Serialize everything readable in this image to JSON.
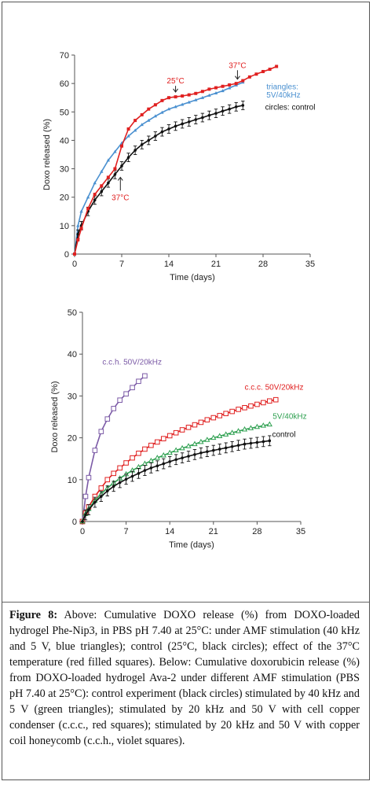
{
  "chart_data": [
    {
      "type": "line",
      "ylabel": "Doxo released (%)",
      "xlabel": "Time (days)",
      "xlim": [
        0,
        35
      ],
      "ylim": [
        0,
        70
      ],
      "xticks": [
        "0",
        "7",
        "14",
        "21",
        "28",
        "35"
      ],
      "yticks": [
        "0",
        "10",
        "20",
        "30",
        "40",
        "50",
        "60",
        "70"
      ],
      "grid": false,
      "series": [
        {
          "key": "blue",
          "color": "#4a90d0",
          "marker": "triangle",
          "x": [
            0,
            0.5,
            1,
            2,
            3,
            4,
            5,
            6,
            7,
            8,
            9,
            10,
            11,
            12,
            13,
            14,
            15,
            16,
            17,
            18,
            19,
            20,
            21,
            22,
            23,
            24,
            25
          ],
          "y": [
            0,
            10,
            15,
            20,
            25,
            29,
            33,
            36,
            39,
            41.5,
            43.5,
            45.5,
            47,
            48.5,
            49.8,
            51,
            51.8,
            52.6,
            53.4,
            54.2,
            55,
            55.8,
            56.6,
            57.4,
            58.4,
            59.4,
            60.4
          ]
        },
        {
          "key": "black",
          "color": "#111111",
          "marker": "circle",
          "errorbar": 1.5,
          "x": [
            0,
            0.5,
            1,
            2,
            3,
            4,
            5,
            6,
            7,
            8,
            9,
            10,
            11,
            12,
            13,
            14,
            15,
            16,
            17,
            18,
            19,
            20,
            21,
            22,
            23,
            24,
            25
          ],
          "y": [
            0,
            7,
            10,
            15,
            19,
            22,
            25,
            28,
            31,
            34,
            36.5,
            38.5,
            40,
            41.5,
            43,
            44,
            45,
            45.8,
            46.5,
            47.3,
            48,
            48.8,
            49.5,
            50.3,
            51,
            51.8,
            52.3
          ]
        },
        {
          "key": "red",
          "color": "#e02020",
          "marker": "square-filled",
          "x": [
            0,
            0.5,
            1,
            2,
            3,
            4,
            5,
            6,
            7,
            8,
            9,
            10,
            11,
            12,
            13,
            14,
            15,
            16,
            17,
            18,
            19,
            20,
            21,
            22,
            23,
            24,
            25,
            26,
            27,
            28,
            29,
            30
          ],
          "y": [
            0,
            5,
            9,
            16,
            21,
            24,
            27,
            30,
            38,
            44,
            47,
            49,
            51,
            52.5,
            54,
            55,
            55.3,
            55.6,
            56,
            56.5,
            57.2,
            58,
            58.5,
            59,
            59.5,
            60,
            61,
            62.3,
            63.3,
            64.2,
            65,
            66
          ]
        }
      ],
      "annotations": [
        {
          "text": "25°C",
          "x": 15,
          "y": 60,
          "arrow_y": 57,
          "color": "#e02020"
        },
        {
          "text": "37°C",
          "x": 24.2,
          "y": 65.5,
          "arrow_y": 61.5,
          "color": "#e02020"
        },
        {
          "text": "37°C",
          "x": 6.8,
          "y": 19,
          "arrow_y": 27,
          "color": "#e02020",
          "below": true
        },
        {
          "text": "triangles:",
          "x": 28.5,
          "y": 58,
          "color": "#4a90d0",
          "align": "start"
        },
        {
          "text": "5V/40kHz",
          "x": 28.5,
          "y": 55,
          "color": "#4a90d0",
          "align": "start"
        },
        {
          "text": "circles: control",
          "x": 28.3,
          "y": 50.8,
          "color": "#111111",
          "align": "start"
        }
      ]
    },
    {
      "type": "line",
      "ylabel": "Doxo released (%)",
      "xlabel": "Time (days)",
      "xlim": [
        0,
        35
      ],
      "ylim": [
        0,
        50
      ],
      "xticks": [
        "0",
        "7",
        "14",
        "21",
        "28",
        "35"
      ],
      "yticks": [
        "0",
        "10",
        "20",
        "30",
        "40",
        "50"
      ],
      "grid": false,
      "series": [
        {
          "key": "violet",
          "color": "#7b5aa6",
          "marker": "square-open",
          "x": [
            0,
            0.5,
            1,
            2,
            3,
            4,
            5,
            6,
            7,
            8,
            9,
            10
          ],
          "y": [
            0,
            6,
            10.5,
            17,
            21.5,
            24.5,
            27,
            29,
            30.5,
            32,
            33.5,
            34.8
          ]
        },
        {
          "key": "red",
          "color": "#e02020",
          "marker": "square-open",
          "x": [
            0,
            0.5,
            1,
            2,
            3,
            4,
            5,
            6,
            7,
            8,
            9,
            10,
            11,
            12,
            13,
            14,
            15,
            16,
            17,
            18,
            19,
            20,
            21,
            22,
            23,
            24,
            25,
            26,
            27,
            28,
            29,
            30,
            31
          ],
          "y": [
            0,
            2,
            3.5,
            6,
            8,
            10,
            11.5,
            12.8,
            14,
            15.2,
            16.3,
            17.3,
            18.2,
            19,
            19.8,
            20.5,
            21.2,
            21.9,
            22.5,
            23.1,
            23.7,
            24.3,
            24.8,
            25.3,
            25.8,
            26.3,
            26.8,
            27.2,
            27.6,
            28,
            28.4,
            28.8,
            29.1
          ]
        },
        {
          "key": "green",
          "color": "#2ea050",
          "marker": "triangle-open",
          "x": [
            0,
            0.5,
            1,
            2,
            3,
            4,
            5,
            6,
            7,
            8,
            9,
            10,
            11,
            12,
            13,
            14,
            15,
            16,
            17,
            18,
            19,
            20,
            21,
            22,
            23,
            24,
            25,
            26,
            27,
            28,
            29,
            30
          ],
          "y": [
            0,
            1.8,
            3,
            5,
            6.6,
            8,
            9.2,
            10.3,
            11.3,
            12.2,
            13,
            13.8,
            14.5,
            15.2,
            15.8,
            16.4,
            17,
            17.5,
            18,
            18.5,
            19,
            19.5,
            20,
            20.4,
            20.8,
            21.2,
            21.6,
            22,
            22.3,
            22.6,
            22.9,
            23.2
          ]
        },
        {
          "key": "black",
          "color": "#111111",
          "marker": "circle",
          "errorbar": 1.2,
          "x": [
            0,
            0.5,
            1,
            2,
            3,
            4,
            5,
            6,
            7,
            8,
            9,
            10,
            11,
            12,
            13,
            14,
            15,
            16,
            17,
            18,
            19,
            20,
            21,
            22,
            23,
            24,
            25,
            26,
            27,
            28,
            29,
            30
          ],
          "y": [
            0,
            1.6,
            2.8,
            4.6,
            6,
            7.3,
            8.4,
            9.3,
            10.1,
            10.8,
            11.5,
            12.2,
            12.8,
            13.3,
            13.8,
            14.3,
            14.8,
            15.2,
            15.6,
            16,
            16.4,
            16.7,
            17,
            17.3,
            17.6,
            17.9,
            18.2,
            18.5,
            18.7,
            18.9,
            19.1,
            19.3
          ]
        }
      ],
      "annotations": [
        {
          "text": "c.c.h. 50V/20kHz",
          "x": 3.2,
          "y": 37.5,
          "color": "#7b5aa6",
          "align": "start"
        },
        {
          "text": "c.c.c. 50V/20kHz",
          "x": 26,
          "y": 31.5,
          "color": "#e02020",
          "align": "start"
        },
        {
          "text": "5V/40kHz",
          "x": 30.5,
          "y": 24.5,
          "color": "#2ea050",
          "align": "start"
        },
        {
          "text": "control",
          "x": 30.4,
          "y": 20.2,
          "color": "#111111",
          "align": "start"
        }
      ]
    }
  ],
  "caption": {
    "label": "Figure 8:",
    "text": " Above: Cumulative DOXO release (%) from DOXO-loaded hydrogel Phe-Nip3, in PBS pH 7.40 at 25°C: under AMF stimulation (40 kHz and 5 V, blue triangles); control (25°C, black circles); effect of the 37°C temperature (red filled squares). Below: Cumulative doxorubicin release (%) from DOXO-loaded hydrogel Ava-2 under different AMF stimulation (PBS pH 7.40 at 25°C): control experiment (black circles) stimulated by 40 kHz and 5 V (green triangles); stimulated by 20 kHz and 50 V with cell copper condenser (c.c.c., red squares); stimulated by 20 kHz and 50 V with copper coil honeycomb (c.c.h., violet squares)."
  }
}
